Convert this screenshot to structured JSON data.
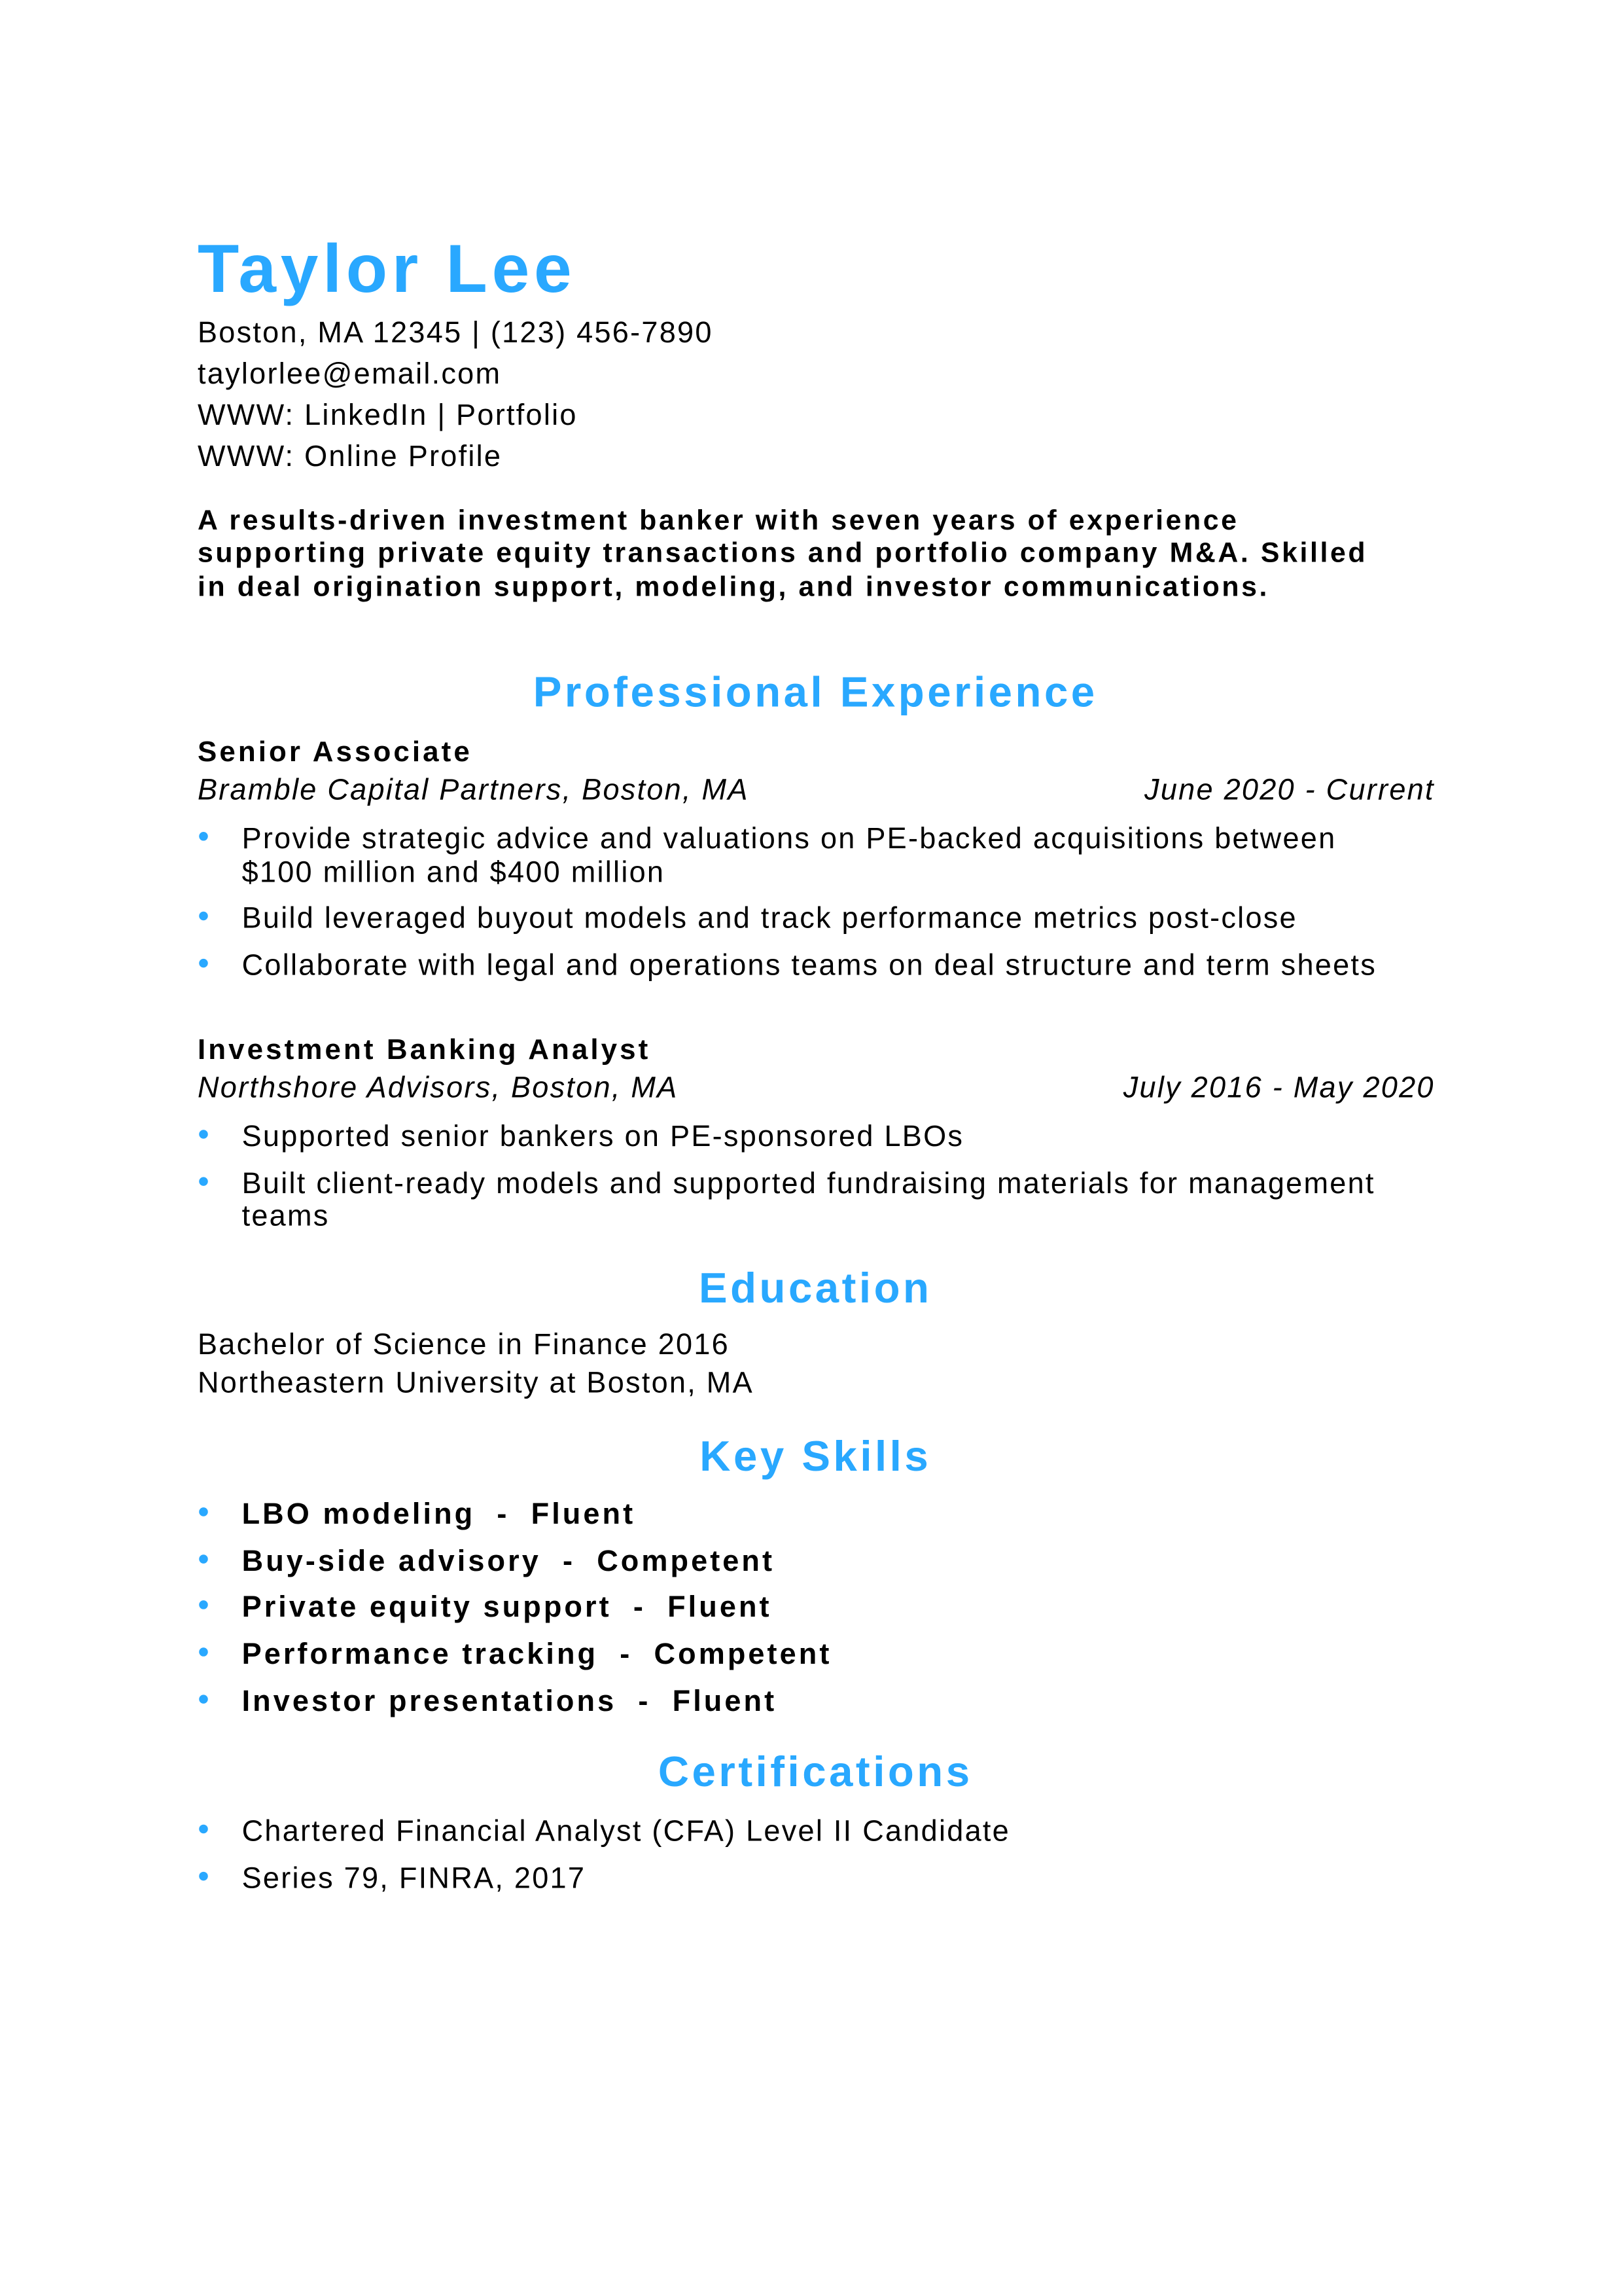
{
  "accent_color": "#29a8ff",
  "header": {
    "name": "Taylor Lee",
    "contact_lines": [
      "Boston, MA 12345 | (123) 456-7890",
      "taylorlee@email.com",
      "WWW: LinkedIn | Portfolio",
      "WWW: Online Profile"
    ]
  },
  "summary": "A results-driven investment banker with seven years of experience supporting private equity transactions and portfolio company M&A. Skilled in deal origination support, modeling, and investor communications.",
  "experience": {
    "heading": "Professional Experience",
    "jobs": [
      {
        "title": "Senior Associate",
        "company": "Bramble Capital Partners, Boston, MA",
        "dates": "June 2020 - Current",
        "bullets": [
          "Provide strategic advice and valuations on PE-backed acquisitions between $100 million and $400 million",
          "Build leveraged buyout models and track performance metrics post-close",
          "Collaborate with legal and operations teams on deal structure and term sheets"
        ]
      },
      {
        "title": "Investment Banking Analyst",
        "company": "Northshore Advisors, Boston, MA",
        "dates": "July 2016 - May 2020",
        "bullets": [
          "Supported senior bankers on PE-sponsored LBOs",
          "Built client-ready models and supported fundraising materials for management teams"
        ]
      }
    ]
  },
  "education": {
    "heading": "Education",
    "lines": [
      "Bachelor of Science in Finance 2016",
      "Northeastern University at Boston, MA"
    ]
  },
  "skills": {
    "heading": "Key Skills",
    "items": [
      "LBO modeling  -  Fluent",
      "Buy-side advisory  -  Competent",
      "Private equity support  -  Fluent",
      "Performance tracking  -  Competent",
      "Investor presentations  -  Fluent"
    ]
  },
  "certifications": {
    "heading": "Certifications",
    "items": [
      "Chartered Financial Analyst (CFA) Level II Candidate",
      "Series 79, FINRA, 2017"
    ]
  }
}
